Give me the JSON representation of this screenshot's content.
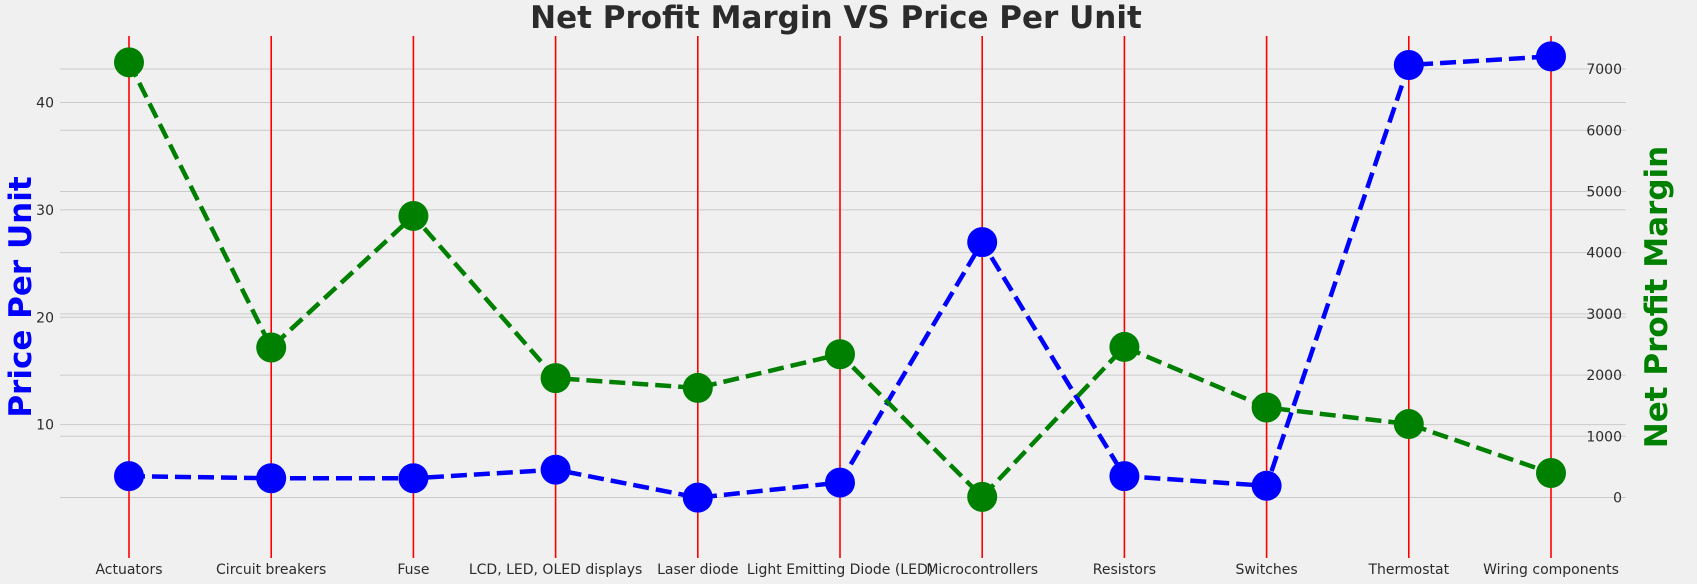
{
  "chart_data": {
    "type": "line",
    "title": "Net Profit Margin VS Price Per Unit",
    "xlabel": "",
    "categories": [
      "Actuators",
      "Circuit breakers",
      "Fuse",
      "LCD, LED, OLED displays",
      "Laser diode",
      "Light Emitting Diode (LED)",
      "Microcontrollers",
      "Resistors",
      "Switches",
      "Thermostat",
      "Wiring components"
    ],
    "series": [
      {
        "name": "Price Per Unit",
        "axis": "left",
        "color": "#0000ff",
        "linestyle": "dashed",
        "values": [
          5.2,
          5.0,
          5.0,
          5.8,
          3.2,
          4.6,
          27.0,
          5.2,
          4.3,
          43.5,
          44.3
        ]
      },
      {
        "name": "Net Profit Margin",
        "axis": "right",
        "color": "#008000",
        "linestyle": "dashed",
        "values": [
          7110,
          2450,
          4600,
          1950,
          1790,
          2340,
          10,
          2460,
          1470,
          1200,
          400
        ]
      }
    ],
    "left_axis": {
      "label": "Price Per Unit",
      "ticks": [
        10,
        20,
        30,
        40
      ],
      "ylim": [
        1.3,
        46.2
      ],
      "color": "#0000ff"
    },
    "right_axis": {
      "label": "Net Profit Margin",
      "ticks": [
        0,
        1000,
        2000,
        3000,
        4000,
        5000,
        6000,
        7000
      ],
      "ylim": [
        -335,
        7540
      ],
      "color": "#008000"
    },
    "category_line_color": "#ff0000",
    "grid": true,
    "background": "#f0f0f0"
  }
}
